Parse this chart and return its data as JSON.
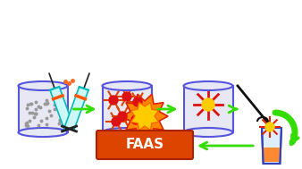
{
  "background_color": "#ffffff",
  "figure_width": 3.38,
  "figure_height": 1.89,
  "dpi": 100,
  "faas_box_color": "#dd4400",
  "faas_text": "FAAS",
  "faas_text_color": "#ffffff",
  "arrow_color": "#33dd00",
  "beaker_edge_color": "#5555dd",
  "beaker_fill_color": "#e8e8f5",
  "syringe_body_color": "#00cccc",
  "syringe_band_color": "#ff5500",
  "syringe_needle_color": "#111111"
}
